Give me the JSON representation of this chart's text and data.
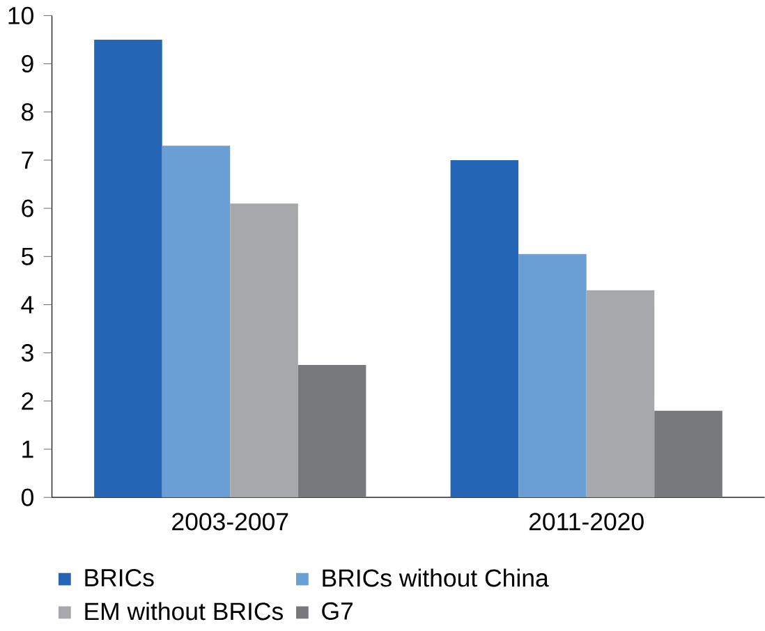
{
  "chart_data": {
    "type": "bar",
    "categories": [
      "2003-2007",
      "2011-2020"
    ],
    "series": [
      {
        "name": "BRICs",
        "color": "#2565b6",
        "values": [
          9.5,
          7.0
        ]
      },
      {
        "name": "BRICs without China",
        "color": "#6a9fd6",
        "values": [
          7.3,
          5.05
        ]
      },
      {
        "name": "EM without BRICs",
        "color": "#a6a8ab",
        "values": [
          6.1,
          4.3
        ]
      },
      {
        "name": "G7",
        "color": "#78797d",
        "values": [
          2.75,
          1.8
        ]
      }
    ],
    "ylim": [
      0,
      10
    ],
    "yticks": [
      0,
      1,
      2,
      3,
      4,
      5,
      6,
      7,
      8,
      9,
      10
    ],
    "grid": false,
    "legend": "bottom left"
  }
}
